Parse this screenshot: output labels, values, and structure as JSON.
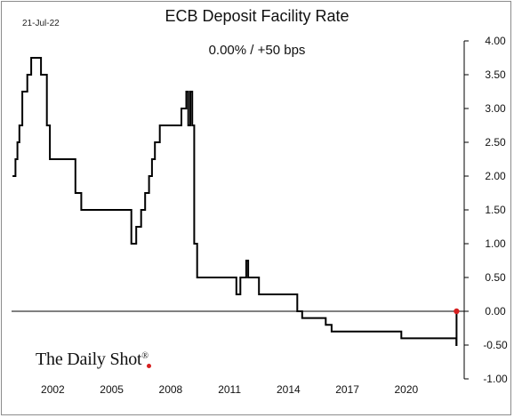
{
  "header": {
    "date": "21-Jul-22",
    "title": "ECB Deposit Facility Rate",
    "subtitle": "0.00%  /  +50 bps"
  },
  "branding": {
    "logo_text": "The Daily Shot",
    "logo_mark": "®"
  },
  "colors": {
    "line": "#000000",
    "zero_line": "#000000",
    "marker": "#d62020"
  },
  "chart_data": {
    "type": "line",
    "title": "ECB Deposit Facility Rate",
    "subtitle": "0.00%  /  +50 bps",
    "xlabel": "",
    "ylabel": "",
    "xlim": [
      1999.9,
      2022.95
    ],
    "ylim": [
      -1.0,
      4.0
    ],
    "grid": false,
    "legend": "none",
    "x_ticks": [
      2002,
      2005,
      2008,
      2011,
      2014,
      2017,
      2020
    ],
    "x_tick_labels": [
      "2002",
      "2005",
      "2008",
      "2011",
      "2014",
      "2017",
      "2020"
    ],
    "y_ticks": [
      4.0,
      3.5,
      3.0,
      2.5,
      2.0,
      1.5,
      1.0,
      0.5,
      0.0,
      -0.5,
      -1.0
    ],
    "y_tick_labels": [
      "4.00",
      "3.50",
      "3.00",
      "2.50",
      "2.00",
      "1.50",
      "1.00",
      "0.50",
      "0.00",
      "-0.50",
      "-1.00"
    ],
    "series": [
      {
        "x": [
          1999.95,
          2000.1,
          2000.2,
          2000.3,
          2000.45,
          2000.7,
          2000.9,
          2001.4,
          2001.7,
          2001.85,
          2003.15,
          2003.45,
          2006.0,
          2006.25,
          2006.5,
          2006.7,
          2006.9,
          2007.05,
          2007.2,
          2007.45,
          2008.55,
          2008.8,
          2008.9,
          2009.0,
          2009.1,
          2009.2,
          2009.35,
          2011.35,
          2011.55,
          2011.85,
          2011.95,
          2012.5,
          2014.45,
          2014.7,
          2015.9,
          2016.2,
          2019.75,
          2022.55,
          2022.56
        ],
        "y": [
          2.0,
          2.25,
          2.5,
          2.75,
          3.25,
          3.5,
          3.75,
          3.5,
          2.75,
          2.25,
          1.75,
          1.5,
          1.0,
          1.25,
          1.5,
          1.75,
          2.0,
          2.25,
          2.5,
          2.75,
          3.0,
          3.25,
          2.75,
          3.25,
          2.75,
          1.0,
          0.5,
          0.25,
          0.5,
          0.75,
          0.5,
          0.25,
          0.0,
          -0.1,
          -0.2,
          -0.3,
          -0.4,
          -0.5,
          0.0
        ]
      }
    ],
    "last_point": {
      "x": 2022.56,
      "y": 0.0
    }
  }
}
